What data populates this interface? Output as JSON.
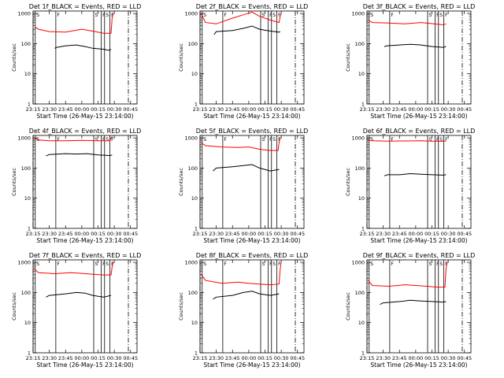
{
  "chart_data": [
    {
      "type": "line",
      "title": "Det 1f_BLACK = Events, RED = LLD",
      "xlabel": "Start Time (26-May-15 23:14:00)",
      "ylabel": "Counts/sec",
      "yscale": "log",
      "ylim": [
        1,
        1200
      ],
      "xlim": [
        "23:15",
        "00:51"
      ],
      "xticks": [
        "23:15",
        "23:30",
        "23:45",
        "00:00",
        "00:15",
        "00:30",
        "00:45"
      ],
      "yticks": [
        "1",
        "10",
        "100",
        "1000"
      ],
      "colors": {
        "events": "#000000",
        "lld": "#ff0000"
      },
      "vlines_solid": [
        "23:17",
        "23:36",
        "00:11",
        "00:18",
        "00:21",
        "00:26"
      ],
      "vlines_dashdot": [
        "23:15",
        "00:43"
      ],
      "flag_labels": [
        "S",
        "F",
        "S",
        "F",
        "S",
        "F"
      ],
      "series": [
        {
          "role": "events",
          "x": [
            "23:35",
            "23:37",
            "23:45",
            "23:55",
            "00:03",
            "00:10",
            "00:20",
            "00:25",
            "00:27"
          ],
          "y": [
            70,
            75,
            85,
            90,
            80,
            70,
            65,
            60,
            65
          ]
        },
        {
          "role": "lld",
          "x": [
            "23:17",
            "23:20",
            "23:30",
            "23:45",
            "00:00",
            "00:10",
            "00:20",
            "00:27",
            "00:28",
            "00:29"
          ],
          "y": [
            350,
            300,
            250,
            240,
            300,
            260,
            220,
            220,
            700,
            1000
          ]
        }
      ]
    },
    {
      "type": "line",
      "title": "Det 2f_BLACK = Events, RED = LLD",
      "xlabel": "Start Time (26-May-15 23:14:00)",
      "ylabel": "Counts/sec",
      "yscale": "log",
      "ylim": [
        1,
        1200
      ],
      "xlim": [
        "23:15",
        "00:51"
      ],
      "xticks": [
        "23:15",
        "23:30",
        "23:45",
        "00:00",
        "00:15",
        "00:30",
        "00:45"
      ],
      "yticks": [
        "1",
        "10",
        "100",
        "1000"
      ],
      "colors": {
        "events": "#000000",
        "lld": "#ff0000"
      },
      "vlines_solid": [
        "23:17",
        "23:36",
        "00:11",
        "00:18",
        "00:21",
        "00:26"
      ],
      "vlines_dashdot": [
        "23:15",
        "00:43"
      ],
      "flag_labels": [
        "S",
        "F",
        "S",
        "F",
        "S",
        "F"
      ],
      "series": [
        {
          "role": "events",
          "x": [
            "23:28",
            "23:30",
            "23:45",
            "23:55",
            "00:03",
            "00:10",
            "00:20",
            "00:28",
            "00:29"
          ],
          "y": [
            200,
            250,
            270,
            320,
            380,
            300,
            260,
            240,
            250
          ]
        },
        {
          "role": "lld",
          "x": [
            "23:16",
            "23:20",
            "23:30",
            "23:45",
            "23:55",
            "00:03",
            "00:10",
            "00:20",
            "00:28",
            "00:29",
            "00:30"
          ],
          "y": [
            1000,
            500,
            450,
            700,
            900,
            1100,
            800,
            600,
            500,
            800,
            1000
          ]
        }
      ]
    },
    {
      "type": "line",
      "title": "Det 3f_BLACK = Events, RED = LLD",
      "xlabel": "Start Time (26-May-15 23:14:00)",
      "ylabel": "Counts/sec",
      "yscale": "log",
      "ylim": [
        1,
        1200
      ],
      "xlim": [
        "23:15",
        "00:51"
      ],
      "xticks": [
        "23:15",
        "23:30",
        "23:45",
        "00:00",
        "00:15",
        "00:30",
        "00:45"
      ],
      "yticks": [
        "1",
        "10",
        "100",
        "1000"
      ],
      "colors": {
        "events": "#000000",
        "lld": "#ff0000"
      },
      "vlines_solid": [
        "23:17",
        "23:36",
        "00:11",
        "00:18",
        "00:21",
        "00:26"
      ],
      "vlines_dashdot": [
        "23:15",
        "00:43"
      ],
      "flag_labels": [
        "S",
        "F",
        "S",
        "F",
        "S",
        "F"
      ],
      "series": [
        {
          "role": "events",
          "x": [
            "23:31",
            "23:34",
            "23:45",
            "23:55",
            "00:05",
            "00:15",
            "00:25",
            "00:28"
          ],
          "y": [
            80,
            85,
            90,
            95,
            90,
            80,
            75,
            80
          ]
        },
        {
          "role": "lld",
          "x": [
            "23:16",
            "23:20",
            "23:35",
            "23:50",
            "00:05",
            "00:15",
            "00:25",
            "00:28"
          ],
          "y": [
            600,
            500,
            480,
            450,
            500,
            460,
            420,
            450
          ]
        }
      ]
    },
    {
      "type": "line",
      "title": "Det 4f_BLACK = Events, RED = LLD",
      "xlabel": "Start Time (26-May-15 23:14:00)",
      "ylabel": "Counts/sec",
      "yscale": "log",
      "ylim": [
        1,
        1200
      ],
      "xlim": [
        "23:15",
        "00:51"
      ],
      "xticks": [
        "23:15",
        "23:30",
        "23:45",
        "00:00",
        "00:15",
        "00:30",
        "00:45"
      ],
      "yticks": [
        "1",
        "10",
        "100",
        "1000"
      ],
      "colors": {
        "events": "#000000",
        "lld": "#ff0000"
      },
      "vlines_solid": [
        "23:17",
        "23:36",
        "00:11",
        "00:18",
        "00:21",
        "00:26"
      ],
      "vlines_dashdot": [
        "23:15",
        "00:43"
      ],
      "flag_labels": [
        "S",
        "F",
        "S",
        "F",
        "S",
        "F"
      ],
      "series": [
        {
          "role": "events",
          "x": [
            "23:27",
            "23:30",
            "23:45",
            "23:55",
            "00:05",
            "00:15",
            "00:26",
            "00:28"
          ],
          "y": [
            250,
            280,
            300,
            290,
            300,
            270,
            260,
            270
          ]
        },
        {
          "role": "lld",
          "x": [
            "23:16",
            "23:20",
            "23:30",
            "23:45",
            "00:00",
            "00:15",
            "00:26",
            "00:27",
            "00:28"
          ],
          "y": [
            1000,
            850,
            800,
            800,
            820,
            800,
            800,
            1000,
            1100
          ]
        }
      ]
    },
    {
      "type": "line",
      "title": "Det 5f_BLACK = Events, RED = LLD",
      "xlabel": "Start Time (26-May-15 23:14:00)",
      "ylabel": "Counts/sec",
      "yscale": "log",
      "ylim": [
        1,
        1200
      ],
      "xlim": [
        "23:15",
        "00:51"
      ],
      "xticks": [
        "23:15",
        "23:30",
        "23:45",
        "00:00",
        "00:15",
        "00:30",
        "00:45"
      ],
      "yticks": [
        "1",
        "10",
        "100",
        "1000"
      ],
      "colors": {
        "events": "#000000",
        "lld": "#ff0000"
      },
      "vlines_solid": [
        "23:17",
        "23:36",
        "00:11",
        "00:18",
        "00:21",
        "00:26"
      ],
      "vlines_dashdot": [
        "23:15",
        "00:43"
      ],
      "flag_labels": [
        "S",
        "F",
        "S",
        "F",
        "S",
        "F"
      ],
      "series": [
        {
          "role": "events",
          "x": [
            "23:27",
            "23:30",
            "23:45",
            "23:55",
            "00:03",
            "00:10",
            "00:20",
            "00:28"
          ],
          "y": [
            80,
            100,
            110,
            120,
            130,
            100,
            80,
            90
          ]
        },
        {
          "role": "lld",
          "x": [
            "23:16",
            "23:20",
            "23:35",
            "23:50",
            "00:00",
            "00:10",
            "00:20",
            "00:27",
            "00:28",
            "00:29"
          ],
          "y": [
            700,
            550,
            500,
            480,
            500,
            420,
            380,
            380,
            700,
            1000
          ]
        }
      ]
    },
    {
      "type": "line",
      "title": "Det 6f_BLACK = Events, RED = LLD",
      "xlabel": "Start Time (26-May-15 23:14:00)",
      "ylabel": "Counts/sec",
      "yscale": "log",
      "ylim": [
        1,
        1200
      ],
      "xlim": [
        "23:15",
        "00:51"
      ],
      "xticks": [
        "23:15",
        "23:30",
        "23:45",
        "00:00",
        "00:15",
        "00:30",
        "00:45"
      ],
      "yticks": [
        "1",
        "10",
        "100",
        "1000"
      ],
      "colors": {
        "events": "#000000",
        "lld": "#ff0000"
      },
      "vlines_solid": [
        "23:17",
        "23:36",
        "00:11",
        "00:18",
        "00:21",
        "00:26"
      ],
      "vlines_dashdot": [
        "23:15",
        "00:43"
      ],
      "flag_labels": [
        "S",
        "F",
        "S",
        "F",
        "S",
        "F"
      ],
      "series": [
        {
          "role": "events",
          "x": [
            "23:31",
            "23:34",
            "23:45",
            "23:55",
            "00:05",
            "00:15",
            "00:25",
            "00:28"
          ],
          "y": [
            55,
            60,
            60,
            65,
            62,
            60,
            58,
            60
          ]
        },
        {
          "role": "lld",
          "x": [
            "23:16",
            "23:20",
            "23:35",
            "23:50",
            "00:05",
            "00:15",
            "00:25",
            "00:28"
          ],
          "y": [
            850,
            800,
            780,
            790,
            800,
            780,
            770,
            790
          ]
        }
      ]
    },
    {
      "type": "line",
      "title": "Det 7f_BLACK = Events, RED = LLD",
      "xlabel": "Start Time (26-May-15 23:14:00)",
      "ylabel": "Counts/sec",
      "yscale": "log",
      "ylim": [
        1,
        1200
      ],
      "xlim": [
        "23:15",
        "00:51"
      ],
      "xticks": [
        "23:15",
        "23:30",
        "23:45",
        "00:00",
        "00:15",
        "00:30",
        "00:45"
      ],
      "yticks": [
        "1",
        "10",
        "100",
        "1000"
      ],
      "colors": {
        "events": "#000000",
        "lld": "#ff0000"
      },
      "vlines_solid": [
        "23:17",
        "23:36",
        "00:11",
        "00:18",
        "00:21",
        "00:26"
      ],
      "vlines_dashdot": [
        "23:15",
        "00:43"
      ],
      "flag_labels": [
        "S",
        "F",
        "S",
        "F",
        "S",
        "F"
      ],
      "series": [
        {
          "role": "events",
          "x": [
            "23:27",
            "23:30",
            "23:45",
            "23:55",
            "00:03",
            "00:10",
            "00:20",
            "00:27"
          ],
          "y": [
            70,
            80,
            90,
            100,
            95,
            80,
            70,
            80
          ]
        },
        {
          "role": "lld",
          "x": [
            "23:16",
            "23:20",
            "23:35",
            "23:50",
            "00:00",
            "00:10",
            "00:20",
            "00:27",
            "00:28",
            "00:29"
          ],
          "y": [
            600,
            450,
            420,
            450,
            430,
            400,
            380,
            380,
            700,
            1000
          ]
        }
      ]
    },
    {
      "type": "line",
      "title": "Det 8f_BLACK = Events, RED = LLD",
      "xlabel": "Start Time (26-May-15 23:14:00)",
      "ylabel": "Counts/sec",
      "yscale": "log",
      "ylim": [
        1,
        1200
      ],
      "xlim": [
        "23:15",
        "00:51"
      ],
      "xticks": [
        "23:15",
        "23:30",
        "23:45",
        "00:00",
        "00:15",
        "00:30",
        "00:45"
      ],
      "yticks": [
        "1",
        "10",
        "100",
        "1000"
      ],
      "colors": {
        "events": "#000000",
        "lld": "#ff0000"
      },
      "vlines_solid": [
        "23:17",
        "23:36",
        "00:11",
        "00:18",
        "00:21",
        "00:26"
      ],
      "vlines_dashdot": [
        "23:15",
        "00:43"
      ],
      "flag_labels": [
        "S",
        "F",
        "S",
        "F",
        "S",
        "F"
      ],
      "series": [
        {
          "role": "events",
          "x": [
            "23:27",
            "23:30",
            "23:45",
            "23:55",
            "00:03",
            "00:10",
            "00:20",
            "00:28"
          ],
          "y": [
            60,
            70,
            80,
            100,
            110,
            90,
            80,
            90
          ]
        },
        {
          "role": "lld",
          "x": [
            "23:16",
            "23:20",
            "23:35",
            "23:50",
            "00:00",
            "00:10",
            "00:20",
            "00:28",
            "00:29",
            "00:30"
          ],
          "y": [
            400,
            250,
            200,
            220,
            200,
            190,
            180,
            190,
            600,
            1000
          ]
        }
      ]
    },
    {
      "type": "line",
      "title": "Det 9f_BLACK = Events, RED = LLD",
      "xlabel": "Start Time (26-May-15 23:14:00)",
      "ylabel": "Counts/sec",
      "yscale": "log",
      "ylim": [
        1,
        1200
      ],
      "xlim": [
        "23:15",
        "00:51"
      ],
      "xticks": [
        "23:15",
        "23:30",
        "23:45",
        "00:00",
        "00:15",
        "00:30",
        "00:45"
      ],
      "yticks": [
        "1",
        "10",
        "100",
        "1000"
      ],
      "colors": {
        "events": "#000000",
        "lld": "#ff0000"
      },
      "vlines_solid": [
        "23:17",
        "23:36",
        "00:11",
        "00:18",
        "00:21",
        "00:26"
      ],
      "vlines_dashdot": [
        "23:15",
        "00:43"
      ],
      "flag_labels": [
        "S",
        "F",
        "S",
        "F",
        "S",
        "F"
      ],
      "series": [
        {
          "role": "events",
          "x": [
            "23:27",
            "23:30",
            "23:45",
            "23:55",
            "00:05",
            "00:15",
            "00:25",
            "00:28"
          ],
          "y": [
            40,
            45,
            50,
            55,
            52,
            50,
            48,
            50
          ]
        },
        {
          "role": "lld",
          "x": [
            "23:16",
            "23:20",
            "23:35",
            "23:50",
            "00:00",
            "00:10",
            "00:20",
            "00:27",
            "00:28",
            "00:29"
          ],
          "y": [
            250,
            170,
            160,
            180,
            170,
            160,
            150,
            150,
            600,
            1000
          ]
        }
      ]
    }
  ]
}
